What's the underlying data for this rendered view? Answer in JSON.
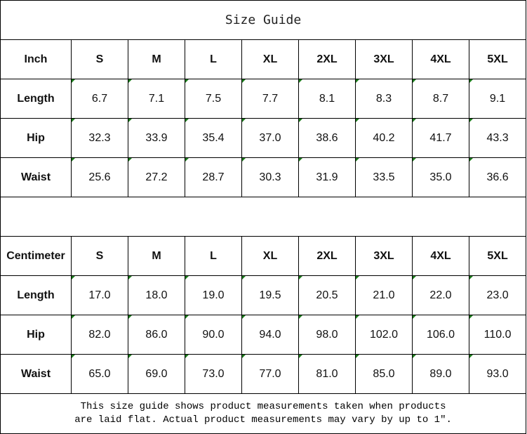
{
  "title": "Size Guide",
  "sizes": [
    "S",
    "M",
    "L",
    "XL",
    "2XL",
    "3XL",
    "4XL",
    "5XL"
  ],
  "inch": {
    "unit_label": "Inch",
    "rows": [
      {
        "label": "Length",
        "values": [
          "6.7",
          "7.1",
          "7.5",
          "7.7",
          "8.1",
          "8.3",
          "8.7",
          "9.1"
        ]
      },
      {
        "label": "Hip",
        "values": [
          "32.3",
          "33.9",
          "35.4",
          "37.0",
          "38.6",
          "40.2",
          "41.7",
          "43.3"
        ]
      },
      {
        "label": "Waist",
        "values": [
          "25.6",
          "27.2",
          "28.7",
          "30.3",
          "31.9",
          "33.5",
          "35.0",
          "36.6"
        ]
      }
    ]
  },
  "cm": {
    "unit_label": "Centimeter",
    "rows": [
      {
        "label": "Length",
        "values": [
          "17.0",
          "18.0",
          "19.0",
          "19.5",
          "20.5",
          "21.0",
          "22.0",
          "23.0"
        ]
      },
      {
        "label": "Hip",
        "values": [
          "82.0",
          "86.0",
          "90.0",
          "94.0",
          "98.0",
          "102.0",
          "106.0",
          "110.0"
        ]
      },
      {
        "label": "Waist",
        "values": [
          "65.0",
          "69.0",
          "73.0",
          "77.0",
          "81.0",
          "85.0",
          "89.0",
          "93.0"
        ]
      }
    ]
  },
  "footer": {
    "line1": "This size guide shows product measurements taken when products",
    "line2": "are laid flat. Actual product measurements may vary by up to 1″."
  },
  "colors": {
    "cell_marker": "#1a7a1a"
  }
}
